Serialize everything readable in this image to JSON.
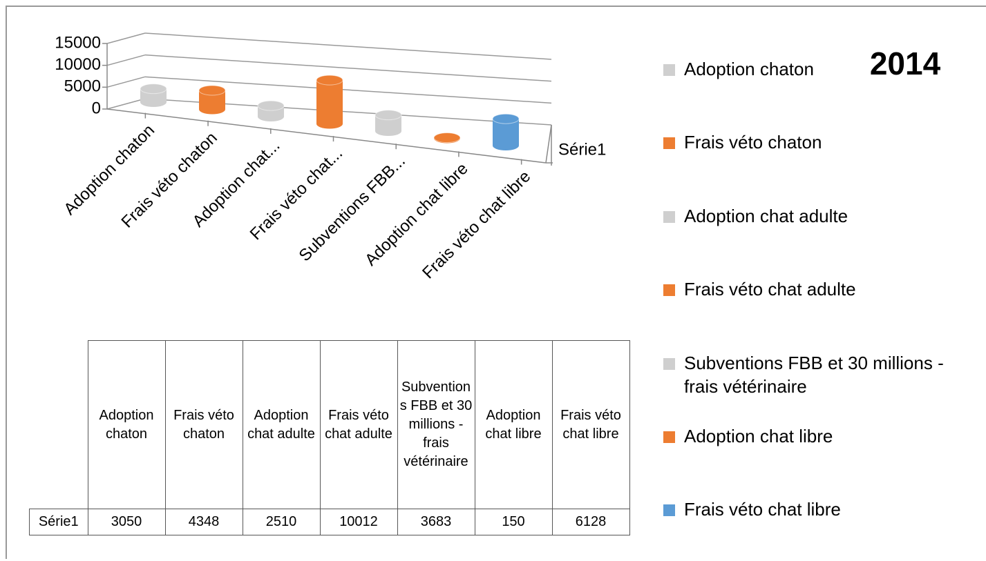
{
  "chart_data": {
    "type": "bar",
    "title": "2014",
    "categories": [
      "Adoption chaton",
      "Frais véto chaton",
      "Adoption chat adulte",
      "Frais véto chat adulte",
      "Subventions FBB et 30 millions - frais vétérinaire",
      "Adoption chat libre",
      "Frais véto chat libre"
    ],
    "axis_labels": [
      "Adoption chaton",
      "Frais véto chaton",
      "Adoption chat...",
      "Frais véto chat...",
      "Subventions FBB...",
      "Adoption chat libre",
      "Frais véto chat libre"
    ],
    "series": [
      {
        "name": "Série1",
        "colors": [
          "#cfcfcf",
          "#ed7d31",
          "#cfcfcf",
          "#ed7d31",
          "#cfcfcf",
          "#ed7d31",
          "#5b9bd5"
        ],
        "values": [
          3050,
          4348,
          2510,
          10012,
          3683,
          150,
          6128
        ]
      }
    ],
    "ylim": [
      0,
      15000
    ],
    "yticks": [
      0,
      5000,
      10000,
      15000
    ],
    "grid": true,
    "legend": "right"
  }
}
